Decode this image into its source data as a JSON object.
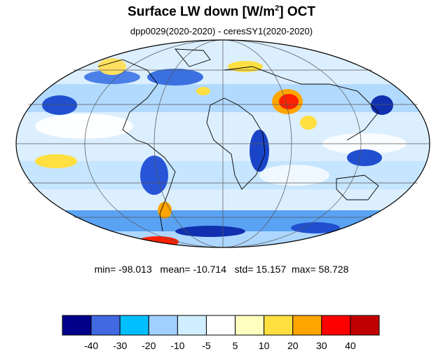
{
  "title": {
    "main": "Surface LW down [W/m",
    "sup": "2",
    "suffix": "]  OCT"
  },
  "subtitle": "dpp0029(2020-2020) - ceresSY1(2020-2020)",
  "stats": {
    "min_label": "min=",
    "min": "-98.013",
    "mean_label": "mean=",
    "mean": "-10.714",
    "std_label": "std=",
    "std": "15.157",
    "max_label": "max=",
    "max": "58.728"
  },
  "colorbar": {
    "colors": [
      "#00008b",
      "#4169e1",
      "#00bfff",
      "#a0d0ff",
      "#d0eeff",
      "#ffffff",
      "#ffffc0",
      "#ffe040",
      "#ffa500",
      "#ff0000",
      "#c00000"
    ],
    "tick_labels": [
      "-40",
      "-30",
      "-20",
      "-10",
      "-5",
      "5",
      "10",
      "20",
      "30",
      "40"
    ]
  },
  "map": {
    "projection": "mollweide",
    "ocean_fill": "#e8f4ff",
    "coastline_color": "#000000",
    "grid_color": "#555555"
  }
}
